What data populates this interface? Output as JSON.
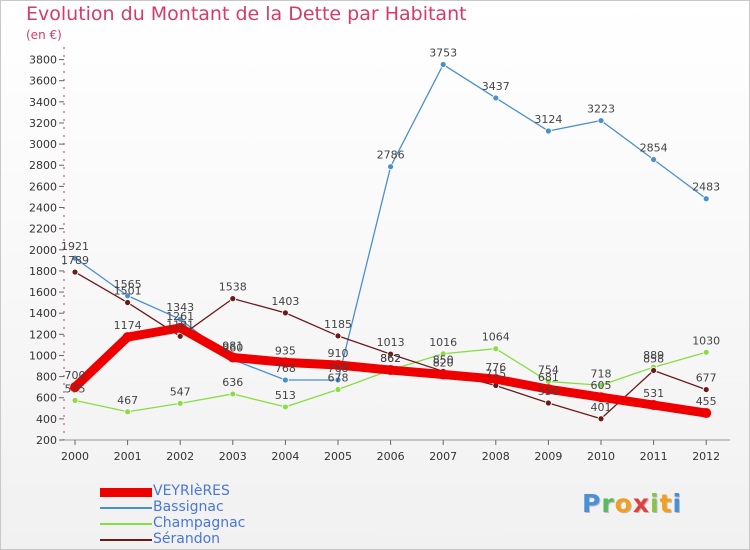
{
  "title": "Evolution du Montant de la Dette par Habitant",
  "subtitle": "(en €)",
  "logo": {
    "text": "Proxiti",
    "letter_colors": [
      "#4a90d9",
      "#5cb85c",
      "#f0a020",
      "#e04040",
      "#8bc34a",
      "#f0a020",
      "#4a90d9"
    ]
  },
  "chart_data": {
    "type": "line",
    "title": "Evolution du Montant de la Dette par Habitant",
    "subtitle": "(en €)",
    "x": [
      "2000",
      "2001",
      "2002",
      "2003",
      "2004",
      "2005",
      "2006",
      "2007",
      "2008",
      "2009",
      "2010",
      "2011",
      "2012"
    ],
    "ylim": [
      200,
      3900
    ],
    "yticks": [
      200,
      400,
      600,
      800,
      1000,
      1200,
      1400,
      1600,
      1800,
      2000,
      2200,
      2400,
      2600,
      2800,
      3000,
      3200,
      3400,
      3600,
      3800
    ],
    "grid": false,
    "legend_position": "bottom-left",
    "series": [
      {
        "name": "VEYRIèRES",
        "color": "#ee0000",
        "values": [
          700,
          1174,
          1261,
          981,
          935,
          910,
          862,
          820,
          776,
          681,
          605,
          531,
          455
        ],
        "labels": [
          "700",
          "1174",
          "1261",
          "981",
          "935",
          "910",
          "862",
          "820",
          "776",
          "681",
          "605",
          "531",
          "455"
        ]
      },
      {
        "name": "Bassignac",
        "color": "#4a8fd0",
        "values": [
          1921,
          1565,
          1343,
          960,
          768,
          768,
          2786,
          3753,
          3437,
          3124,
          3223,
          2854,
          2483
        ],
        "labels": [
          "1921",
          "1565",
          "1343",
          "960",
          "768",
          "768",
          "2786",
          "3753",
          "3437",
          "3124",
          "3223",
          "2854",
          "2483"
        ]
      },
      {
        "name": "Champagnac",
        "color": "#88dd44",
        "values": [
          575,
          467,
          547,
          636,
          513,
          678,
          862,
          1016,
          1064,
          754,
          718,
          889,
          1030
        ],
        "labels": [
          "575",
          "467",
          "547",
          "636",
          "513",
          "678",
          "862",
          "1016",
          "1064",
          "754",
          "718",
          "889",
          "1030"
        ]
      },
      {
        "name": "Sérandon",
        "color": "#6b1a1a",
        "values": [
          1789,
          1501,
          1181,
          1538,
          1403,
          1185,
          1013,
          850,
          715,
          550,
          401,
          858,
          677
        ],
        "labels": [
          "1789",
          "1501",
          "1181",
          "1538",
          "1403",
          "1185",
          "1013",
          "850",
          "715",
          "550",
          "401",
          "858",
          "677"
        ]
      }
    ]
  }
}
